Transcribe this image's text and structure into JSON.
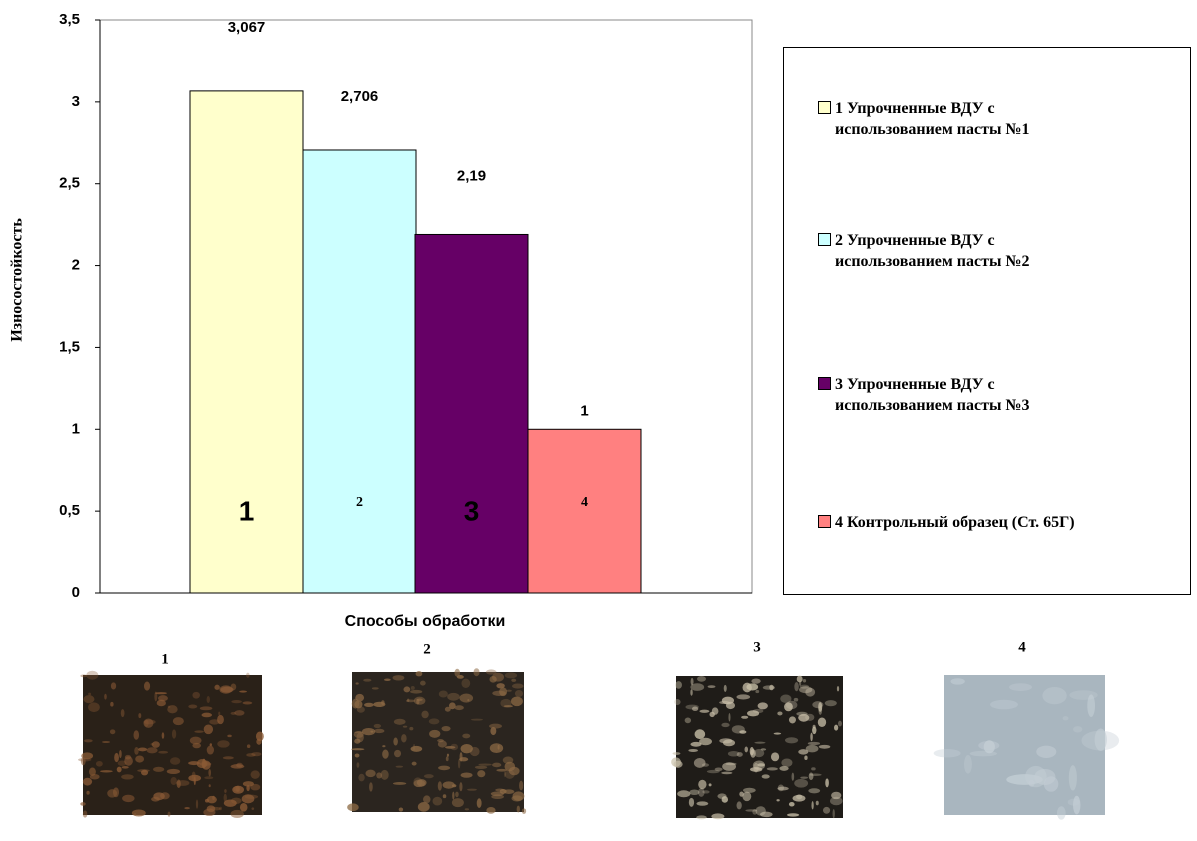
{
  "chart_data": {
    "type": "bar",
    "x_label": "Способы обработки",
    "y_label": "Износостойкость",
    "categories": [
      null
    ],
    "series": [
      {
        "name": "1 Упрочненные ВДУ с использованием пасты №1",
        "color": "#ffffcc",
        "values": [
          3.067
        ],
        "value_labels": [
          "3,067"
        ],
        "bar_label": "1"
      },
      {
        "name": "2 Упрочненные ВДУ с использованием пасты №2",
        "color": "#ccffff",
        "values": [
          2.706
        ],
        "value_labels": [
          "2,706"
        ],
        "bar_label": "2"
      },
      {
        "name": "3 Упрочненные ВДУ с использованием пасты №3",
        "color": "#660066",
        "values": [
          2.19
        ],
        "value_labels": [
          "2,19"
        ],
        "bar_label": "3"
      },
      {
        "name": "4 Контрольный образец (Ст. 65Г)",
        "color": "#ff8080",
        "values": [
          1
        ],
        "value_labels": [
          "1"
        ],
        "bar_label": "4"
      }
    ],
    "ylim": [
      0,
      3.5
    ],
    "yticks": [
      0,
      {
        "value": 0.5,
        "label": "0,5"
      },
      1,
      {
        "value": 1.5,
        "label": "1,5"
      },
      2,
      {
        "value": 2.5,
        "label": "2,5"
      },
      3,
      {
        "value": 3.5,
        "label": "3,5"
      }
    ]
  },
  "photos": [
    {
      "caption": "1"
    },
    {
      "caption": "2"
    },
    {
      "caption": "3"
    },
    {
      "caption": "4"
    }
  ]
}
